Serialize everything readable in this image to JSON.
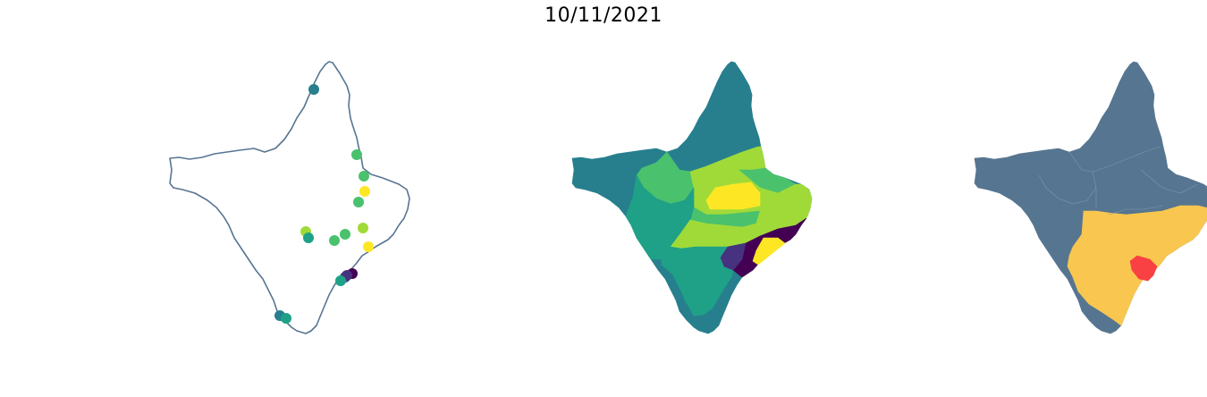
{
  "title": "10/11/2021",
  "colors": {
    "outline": "#587592",
    "base_region": "#567590",
    "alert_yellow": "#f9c74f",
    "alert_red": "#f94144",
    "viridis": [
      "#440154",
      "#46327e",
      "#365c8d",
      "#277f8e",
      "#1fa187",
      "#4ac16d",
      "#a0da39",
      "#fde725"
    ]
  },
  "panels": [
    {
      "name": "station-points-map",
      "style": "points"
    },
    {
      "name": "choropleth-map",
      "style": "viridis-regions"
    },
    {
      "name": "alert-level-map",
      "style": "alert-regions"
    }
  ]
}
